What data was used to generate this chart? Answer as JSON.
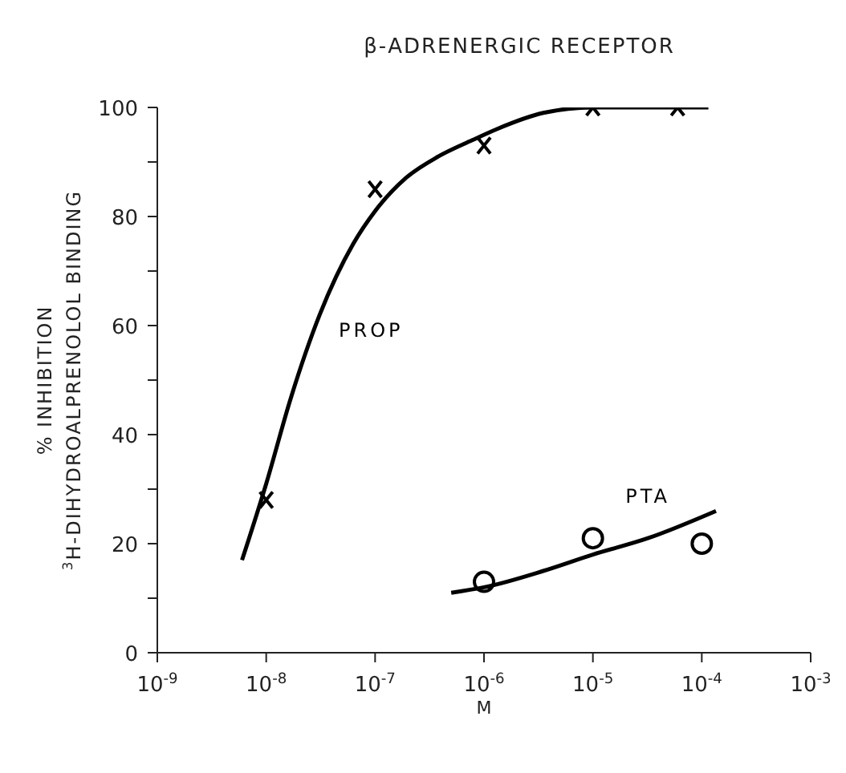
{
  "chart_data": {
    "type": "line",
    "title": "β-ADRENERGIC RECEPTOR",
    "xlabel": "M",
    "ylabel": "% INHIBITION\n$^{3}$H-DIHYDROALPRENOLOL BINDING",
    "log": "x",
    "grid": false,
    "xlim": [
      1e-09,
      0.001
    ],
    "xticks": [
      {
        "value": 1e-09,
        "label": "10$^{-9}$"
      },
      {
        "value": 1e-08,
        "label": "10$^{-8}$"
      },
      {
        "value": 1e-07,
        "label": "10$^{-7}$"
      },
      {
        "value": 1e-06,
        "label": "10$^{-6}$"
      },
      {
        "value": 1e-05,
        "label": "10$^{-5}$"
      },
      {
        "value": 0.0001,
        "label": "10$^{-4}$"
      },
      {
        "value": 0.001,
        "label": "10$^{-3}$"
      }
    ],
    "ylim": [
      0,
      100
    ],
    "yticks": [
      0,
      {
        "value": 10,
        "label": null
      },
      20,
      {
        "value": 30,
        "label": null
      },
      40,
      {
        "value": 50,
        "label": null
      },
      60,
      {
        "value": 70,
        "label": null
      },
      80,
      {
        "value": 90,
        "label": null
      },
      100
    ],
    "series": [
      {
        "name": "PROP",
        "color": "#000000",
        "marker": "none",
        "line_style": "solid",
        "x": [
          6e-09,
          1e-08,
          1.7e-08,
          3.1e-08,
          6.3e-08,
          1e-07,
          1.9e-07,
          3.8e-07,
          7.8e-07,
          1.3e-06,
          3.5e-06,
          1e-05,
          3.2e-05,
          0.000115
        ],
        "values": [
          17,
          31,
          47,
          62,
          75,
          81,
          87,
          91,
          94,
          96,
          99,
          100,
          100,
          100
        ]
      },
      {
        "type": "scatter",
        "color": "#000000",
        "marker": "cross",
        "x": [
          1e-08,
          1e-07,
          1e-06,
          1e-05,
          6e-05
        ],
        "values": [
          28,
          85,
          93,
          100,
          100
        ]
      },
      {
        "name": "PTA",
        "color": "#000000",
        "marker": "none",
        "line_style": "solid",
        "x": [
          5e-07,
          1e-06,
          3.5e-06,
          1e-05,
          3.2e-05,
          0.000135
        ],
        "values": [
          11,
          12,
          15,
          18,
          21,
          26
        ]
      },
      {
        "type": "scatter",
        "color": "#000000",
        "marker": "circle",
        "x": [
          1e-06,
          1e-05,
          0.0001
        ],
        "values": [
          13,
          21,
          20
        ]
      }
    ]
  }
}
